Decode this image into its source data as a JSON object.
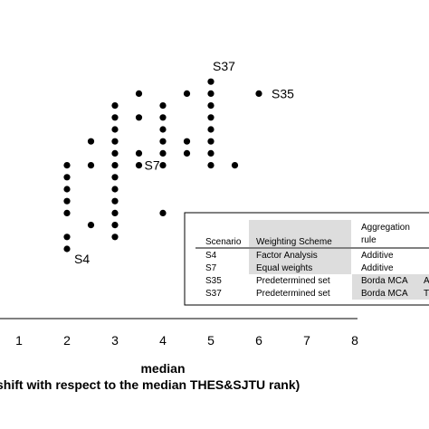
{
  "chart_data": {
    "type": "scatter",
    "title": "",
    "xlabel": "median",
    "xlabel_sub": "shift with respect to the median THES&SJTU rank)",
    "ylabel": "",
    "xlim": [
      0,
      8
    ],
    "x_ticks": [
      "1",
      "2",
      "3",
      "4",
      "5",
      "6",
      "7",
      "8"
    ],
    "grid": false,
    "legend": "none",
    "marker_color": "#000000",
    "points": [
      {
        "x": 2,
        "y": 1
      },
      {
        "x": 2,
        "y": 2
      },
      {
        "x": 2,
        "y": 4
      },
      {
        "x": 2,
        "y": 5
      },
      {
        "x": 2,
        "y": 6
      },
      {
        "x": 2,
        "y": 7
      },
      {
        "x": 2,
        "y": 8
      },
      {
        "x": 2.5,
        "y": 3
      },
      {
        "x": 2.5,
        "y": 8
      },
      {
        "x": 2.5,
        "y": 10
      },
      {
        "x": 3,
        "y": 2
      },
      {
        "x": 3,
        "y": 3
      },
      {
        "x": 3,
        "y": 4
      },
      {
        "x": 3,
        "y": 5
      },
      {
        "x": 3,
        "y": 6
      },
      {
        "x": 3,
        "y": 7
      },
      {
        "x": 3,
        "y": 8
      },
      {
        "x": 3,
        "y": 9
      },
      {
        "x": 3,
        "y": 10
      },
      {
        "x": 3,
        "y": 11
      },
      {
        "x": 3,
        "y": 12
      },
      {
        "x": 3,
        "y": 13
      },
      {
        "x": 3.5,
        "y": 8
      },
      {
        "x": 3.5,
        "y": 9
      },
      {
        "x": 3.5,
        "y": 12
      },
      {
        "x": 3.5,
        "y": 14
      },
      {
        "x": 4,
        "y": 4
      },
      {
        "x": 4,
        "y": 8
      },
      {
        "x": 4,
        "y": 9
      },
      {
        "x": 4,
        "y": 10
      },
      {
        "x": 4,
        "y": 11
      },
      {
        "x": 4,
        "y": 12
      },
      {
        "x": 4,
        "y": 13
      },
      {
        "x": 4.5,
        "y": 9
      },
      {
        "x": 4.5,
        "y": 10
      },
      {
        "x": 4.5,
        "y": 14
      },
      {
        "x": 5,
        "y": 8
      },
      {
        "x": 5,
        "y": 9
      },
      {
        "x": 5,
        "y": 10
      },
      {
        "x": 5,
        "y": 11
      },
      {
        "x": 5,
        "y": 12
      },
      {
        "x": 5,
        "y": 13
      },
      {
        "x": 5,
        "y": 14
      },
      {
        "x": 5,
        "y": 15
      },
      {
        "x": 5.5,
        "y": 8
      },
      {
        "x": 6,
        "y": 14
      }
    ],
    "point_labels": [
      {
        "text": "S4",
        "x": 2,
        "y": 1
      },
      {
        "text": "S7",
        "x": 3.5,
        "y": 8
      },
      {
        "text": "S37",
        "x": 5,
        "y": 15
      },
      {
        "text": "S35",
        "x": 6,
        "y": 14
      }
    ],
    "inset_table": {
      "headers": [
        "Scenario",
        "Weighting Scheme",
        "Aggregation rule"
      ],
      "rows": [
        [
          "S4",
          "Factor Analysis",
          "Additive"
        ],
        [
          "S7",
          "Equal weights",
          "Additive"
        ],
        [
          "S35",
          "Predetermined set",
          "Borda MCA"
        ],
        [
          "S37",
          "Predetermined set",
          "Borda MCA"
        ]
      ],
      "clipped_cells": [
        "A",
        "T"
      ],
      "header_fill": "#dddddd"
    }
  }
}
